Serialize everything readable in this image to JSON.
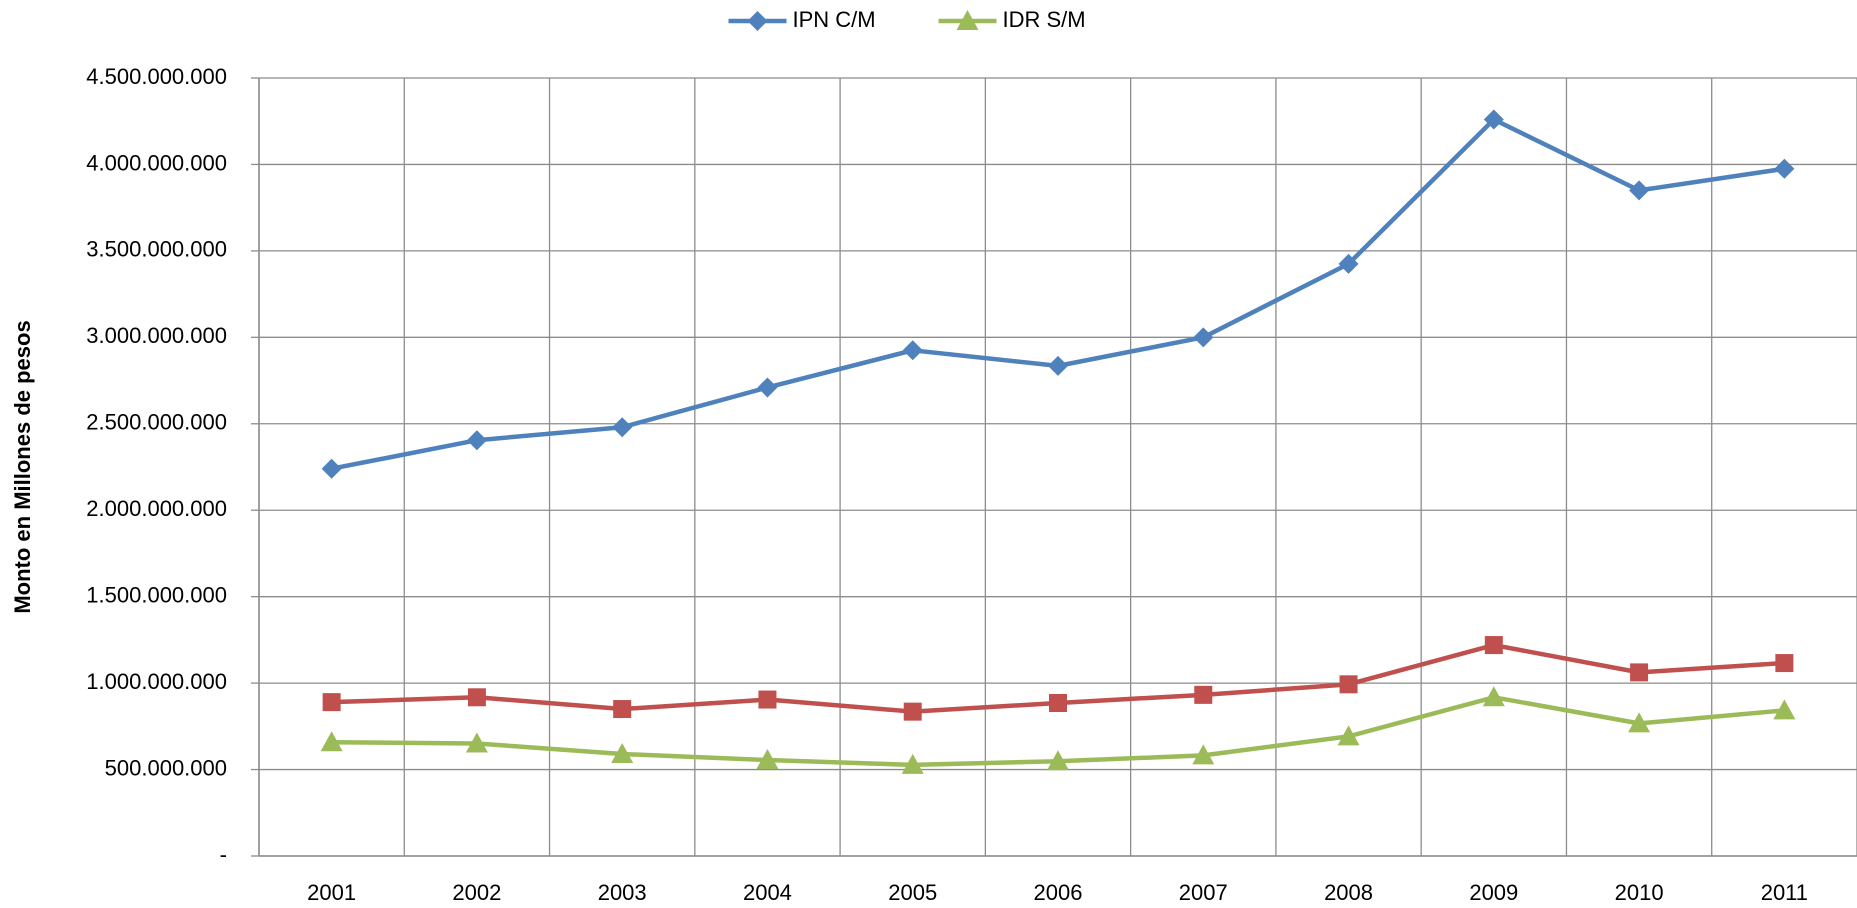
{
  "chart_data": {
    "type": "line",
    "y_label": "Monto en Millones de pesos",
    "categories": [
      "2001",
      "2002",
      "2003",
      "2004",
      "2005",
      "2006",
      "2007",
      "2008",
      "2009",
      "2010",
      "2011"
    ],
    "series": [
      {
        "name": "IPN C/M",
        "color": "#4f81bd",
        "marker": "diamond",
        "values": [
          2240000000,
          2405000000,
          2480000000,
          2710000000,
          2925000000,
          2835000000,
          3000000000,
          3425000000,
          4260000000,
          3850000000,
          3975000000
        ]
      },
      {
        "color": "#c0504d",
        "marker": "square",
        "values": [
          890000000,
          918000000,
          850000000,
          905000000,
          835000000,
          885000000,
          932000000,
          993000000,
          1220000000,
          1062000000,
          1116000000
        ]
      },
      {
        "name": "IDR S/M",
        "color": "#9bbb59",
        "marker": "triangle",
        "values": [
          658000000,
          651000000,
          590000000,
          555000000,
          527000000,
          548000000,
          582000000,
          692000000,
          918000000,
          767000000,
          842000000
        ]
      }
    ],
    "ylim": [
      0,
      4500000000
    ],
    "yticks": [
      {
        "value": 0,
        "label": "-"
      },
      {
        "value": 500000000,
        "label": "500.000.000"
      },
      {
        "value": 1000000000,
        "label": "1.000.000.000"
      },
      {
        "value": 1500000000,
        "label": "1.500.000.000"
      },
      {
        "value": 2000000000,
        "label": "2.000.000.000"
      },
      {
        "value": 2500000000,
        "label": "2.500.000.000"
      },
      {
        "value": 3000000000,
        "label": "3.000.000.000"
      },
      {
        "value": 3500000000,
        "label": "3.500.000.000"
      },
      {
        "value": 4000000000,
        "label": "4.000.000.000"
      },
      {
        "value": 4500000000,
        "label": "4.500.000.000"
      }
    ],
    "grid": true,
    "legend": "top"
  }
}
